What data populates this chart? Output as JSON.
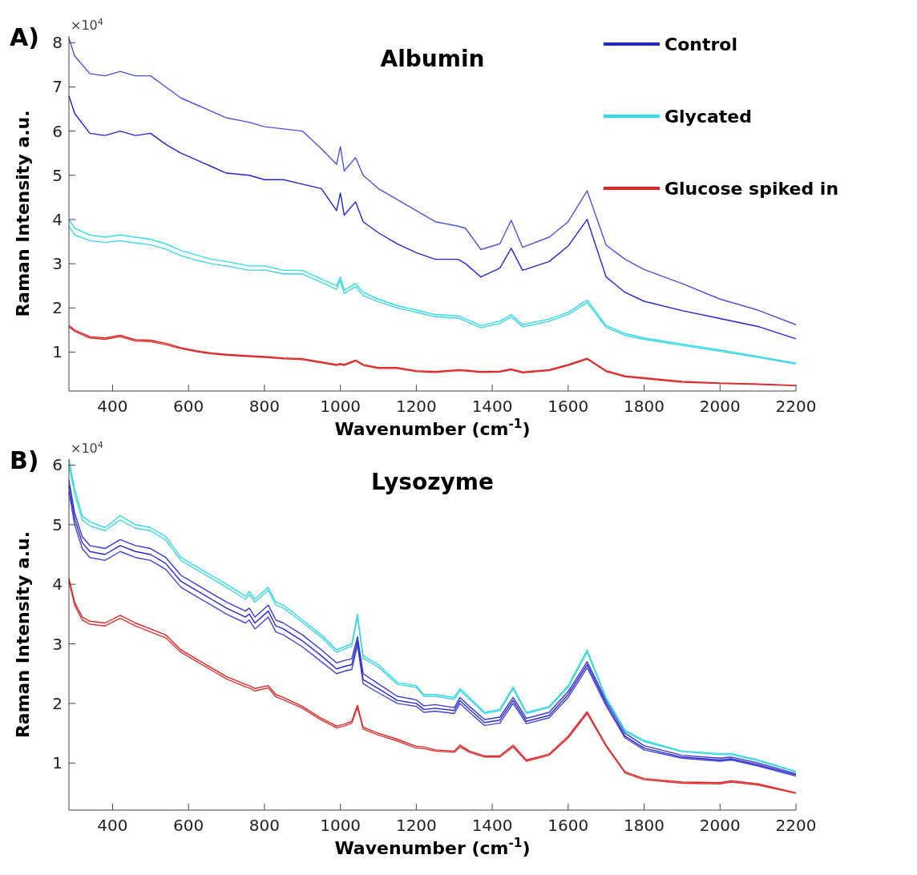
{
  "chart_data": [
    {
      "type": "line",
      "title": "Albumin",
      "xlabel": "Wavenumber (cm$^{-1}$)",
      "ylabel": "Raman Intensity a.u.",
      "annotations": [
        "A)",
        "×10$^{4}$"
      ],
      "legend": "top right",
      "xlim": [
        285,
        2200
      ],
      "xticks": [
        400,
        600,
        800,
        1000,
        1200,
        1400,
        1600,
        1800,
        2000,
        2200
      ],
      "ylim": [
        0.12,
        8.15
      ],
      "yticks": [
        1,
        2,
        3,
        4,
        5,
        6,
        7,
        8
      ],
      "x": [
        285,
        300,
        340,
        380,
        420,
        460,
        500,
        540,
        580,
        620,
        660,
        700,
        760,
        800,
        850,
        900,
        950,
        990,
        1000,
        1010,
        1040,
        1060,
        1100,
        1150,
        1200,
        1250,
        1310,
        1330,
        1370,
        1420,
        1450,
        1480,
        1550,
        1600,
        1650,
        1700,
        1750,
        1800,
        1900,
        2000,
        2100,
        2200
      ],
      "series": [
        {
          "name": "Control",
          "color": "#2424cc",
          "values": [
            6.8,
            6.4,
            5.95,
            5.9,
            6.0,
            5.9,
            5.95,
            5.7,
            5.5,
            5.35,
            5.2,
            5.05,
            5.0,
            4.9,
            4.9,
            4.8,
            4.7,
            4.2,
            4.6,
            4.1,
            4.4,
            3.95,
            3.7,
            3.45,
            3.25,
            3.1,
            3.1,
            3.0,
            2.7,
            2.9,
            3.35,
            2.85,
            3.05,
            3.4,
            4.0,
            2.7,
            2.35,
            2.15,
            1.94,
            1.76,
            1.58,
            1.3
          ]
        },
        {
          "color": "#5050d8",
          "values": [
            8.1,
            7.7,
            7.3,
            7.25,
            7.35,
            7.25,
            7.25,
            7.0,
            6.75,
            6.6,
            6.45,
            6.3,
            6.2,
            6.1,
            6.05,
            6.0,
            5.6,
            5.25,
            5.65,
            5.1,
            5.4,
            5.0,
            4.7,
            4.45,
            4.2,
            3.95,
            3.85,
            3.8,
            3.32,
            3.45,
            3.98,
            3.37,
            3.6,
            3.95,
            4.65,
            3.42,
            3.1,
            2.87,
            2.55,
            2.2,
            1.95,
            1.62
          ]
        },
        {
          "name": "Glycated",
          "color": "#30dce6",
          "values": [
            4.0,
            3.8,
            3.65,
            3.6,
            3.65,
            3.6,
            3.55,
            3.45,
            3.3,
            3.2,
            3.1,
            3.05,
            2.95,
            2.95,
            2.85,
            2.85,
            2.65,
            2.5,
            2.7,
            2.4,
            2.55,
            2.35,
            2.2,
            2.05,
            1.95,
            1.85,
            1.82,
            1.75,
            1.6,
            1.7,
            1.85,
            1.62,
            1.75,
            1.9,
            2.18,
            1.6,
            1.42,
            1.32,
            1.18,
            1.05,
            0.9,
            0.75
          ]
        },
        {
          "color": "#40d4e0",
          "values": [
            3.85,
            3.65,
            3.52,
            3.48,
            3.52,
            3.47,
            3.43,
            3.33,
            3.18,
            3.08,
            3.0,
            2.95,
            2.85,
            2.86,
            2.77,
            2.77,
            2.58,
            2.42,
            2.62,
            2.33,
            2.48,
            2.28,
            2.14,
            2.0,
            1.9,
            1.8,
            1.77,
            1.7,
            1.55,
            1.65,
            1.8,
            1.57,
            1.7,
            1.85,
            2.12,
            1.56,
            1.38,
            1.29,
            1.15,
            1.02,
            0.88,
            0.73
          ]
        },
        {
          "name": "Glucose spiked in",
          "color": "#e02424",
          "values": [
            1.6,
            1.5,
            1.35,
            1.32,
            1.38,
            1.28,
            1.27,
            1.2,
            1.1,
            1.03,
            0.98,
            0.95,
            0.92,
            0.9,
            0.87,
            0.85,
            0.78,
            0.72,
            0.74,
            0.72,
            0.82,
            0.72,
            0.65,
            0.65,
            0.58,
            0.56,
            0.6,
            0.59,
            0.56,
            0.57,
            0.62,
            0.55,
            0.6,
            0.72,
            0.86,
            0.58,
            0.46,
            0.42,
            0.34,
            0.3,
            0.28,
            0.25
          ]
        },
        {
          "color": "#d83030",
          "values": [
            1.57,
            1.47,
            1.32,
            1.29,
            1.35,
            1.25,
            1.24,
            1.17,
            1.08,
            1.01,
            0.96,
            0.93,
            0.9,
            0.88,
            0.85,
            0.83,
            0.76,
            0.7,
            0.72,
            0.7,
            0.8,
            0.7,
            0.63,
            0.63,
            0.56,
            0.54,
            0.58,
            0.57,
            0.54,
            0.55,
            0.6,
            0.53,
            0.58,
            0.7,
            0.84,
            0.56,
            0.44,
            0.4,
            0.32,
            0.29,
            0.27,
            0.24
          ]
        }
      ]
    },
    {
      "type": "line",
      "title": "Lysozyme",
      "xlabel": "Wavenumber (cm$^{-1}$)",
      "ylabel": "Raman Intensity a.u.",
      "annotations": [
        "B)",
        "×10$^{4}$"
      ],
      "xlim": [
        285,
        2200
      ],
      "xticks": [
        400,
        600,
        800,
        1000,
        1200,
        1400,
        1600,
        1800,
        2000,
        2200
      ],
      "ylim": [
        0.21,
        6.1
      ],
      "yticks": [
        1,
        2,
        3,
        4,
        5,
        6
      ],
      "x": [
        285,
        300,
        320,
        340,
        380,
        420,
        460,
        500,
        540,
        580,
        620,
        660,
        700,
        750,
        760,
        775,
        810,
        830,
        850,
        900,
        950,
        990,
        1010,
        1030,
        1045,
        1060,
        1100,
        1150,
        1200,
        1220,
        1250,
        1300,
        1315,
        1340,
        1380,
        1420,
        1455,
        1490,
        1550,
        1600,
        1650,
        1700,
        1750,
        1800,
        1900,
        2000,
        2030,
        2100,
        2200
      ],
      "series": [
        {
          "color": "#3838d4",
          "values": [
            5.75,
            5.2,
            4.8,
            4.65,
            4.6,
            4.75,
            4.65,
            4.6,
            4.45,
            4.15,
            4.0,
            3.85,
            3.7,
            3.55,
            3.6,
            3.45,
            3.65,
            3.4,
            3.35,
            3.15,
            2.9,
            2.68,
            2.72,
            2.75,
            3.12,
            2.5,
            2.33,
            2.12,
            2.06,
            1.96,
            1.98,
            1.93,
            2.1,
            1.95,
            1.73,
            1.77,
            2.1,
            1.75,
            1.85,
            2.2,
            2.7,
            2.05,
            1.5,
            1.29,
            1.13,
            1.08,
            1.1,
            1.0,
            0.82
          ]
        },
        {
          "color": "#2828cc",
          "values": [
            5.65,
            5.1,
            4.7,
            4.55,
            4.5,
            4.65,
            4.55,
            4.5,
            4.35,
            4.05,
            3.9,
            3.75,
            3.6,
            3.45,
            3.5,
            3.35,
            3.55,
            3.3,
            3.25,
            3.05,
            2.8,
            2.58,
            2.62,
            2.65,
            3.05,
            2.4,
            2.25,
            2.05,
            2.0,
            1.9,
            1.92,
            1.88,
            2.05,
            1.9,
            1.68,
            1.72,
            2.05,
            1.7,
            1.8,
            2.15,
            2.65,
            2.0,
            1.45,
            1.25,
            1.1,
            1.05,
            1.07,
            0.97,
            0.8
          ]
        },
        {
          "color": "#4444d8",
          "values": [
            5.55,
            5.0,
            4.6,
            4.45,
            4.4,
            4.55,
            4.45,
            4.4,
            4.25,
            3.95,
            3.8,
            3.65,
            3.5,
            3.35,
            3.4,
            3.25,
            3.45,
            3.2,
            3.15,
            2.95,
            2.7,
            2.5,
            2.54,
            2.57,
            2.98,
            2.33,
            2.18,
            2.0,
            1.95,
            1.85,
            1.87,
            1.83,
            2.0,
            1.85,
            1.63,
            1.67,
            2.0,
            1.66,
            1.76,
            2.1,
            2.6,
            1.96,
            1.42,
            1.22,
            1.08,
            1.03,
            1.05,
            0.95,
            0.78
          ]
        },
        {
          "color": "#30dce6",
          "values": [
            6.1,
            5.6,
            5.15,
            5.05,
            4.95,
            5.15,
            5.0,
            4.95,
            4.8,
            4.45,
            4.3,
            4.15,
            4.0,
            3.8,
            3.88,
            3.75,
            3.95,
            3.7,
            3.65,
            3.4,
            3.15,
            2.9,
            2.95,
            3.0,
            3.5,
            2.8,
            2.65,
            2.35,
            2.3,
            2.15,
            2.15,
            2.1,
            2.25,
            2.1,
            1.85,
            1.9,
            2.28,
            1.85,
            1.95,
            2.3,
            2.9,
            2.1,
            1.55,
            1.38,
            1.2,
            1.16,
            1.16,
            1.05,
            0.86
          ]
        },
        {
          "color": "#48d2de",
          "values": [
            6.0,
            5.52,
            5.08,
            4.98,
            4.9,
            5.08,
            4.94,
            4.9,
            4.74,
            4.4,
            4.25,
            4.1,
            3.95,
            3.75,
            3.83,
            3.7,
            3.9,
            3.65,
            3.6,
            3.36,
            3.11,
            2.86,
            2.91,
            2.96,
            3.45,
            2.76,
            2.61,
            2.32,
            2.27,
            2.12,
            2.12,
            2.07,
            2.22,
            2.07,
            1.83,
            1.88,
            2.25,
            1.83,
            1.93,
            2.27,
            2.86,
            2.08,
            1.53,
            1.36,
            1.19,
            1.14,
            1.14,
            1.04,
            0.85
          ]
        },
        {
          "color": "#e02424",
          "values": [
            4.1,
            3.7,
            3.45,
            3.38,
            3.35,
            3.48,
            3.35,
            3.25,
            3.15,
            2.9,
            2.75,
            2.6,
            2.45,
            2.32,
            2.3,
            2.25,
            2.3,
            2.15,
            2.1,
            1.95,
            1.75,
            1.62,
            1.65,
            1.7,
            1.97,
            1.6,
            1.5,
            1.4,
            1.28,
            1.27,
            1.22,
            1.2,
            1.3,
            1.2,
            1.12,
            1.12,
            1.3,
            1.05,
            1.15,
            1.45,
            1.86,
            1.3,
            0.85,
            0.74,
            0.68,
            0.67,
            0.7,
            0.65,
            0.5
          ]
        },
        {
          "color": "#d43838",
          "values": [
            4.05,
            3.65,
            3.4,
            3.33,
            3.3,
            3.43,
            3.3,
            3.2,
            3.1,
            2.86,
            2.71,
            2.56,
            2.41,
            2.28,
            2.26,
            2.21,
            2.26,
            2.11,
            2.06,
            1.92,
            1.72,
            1.59,
            1.62,
            1.67,
            1.93,
            1.57,
            1.47,
            1.37,
            1.25,
            1.24,
            1.2,
            1.18,
            1.27,
            1.18,
            1.1,
            1.1,
            1.27,
            1.03,
            1.13,
            1.42,
            1.83,
            1.28,
            0.83,
            0.72,
            0.66,
            0.65,
            0.68,
            0.63,
            0.49
          ]
        }
      ]
    }
  ]
}
